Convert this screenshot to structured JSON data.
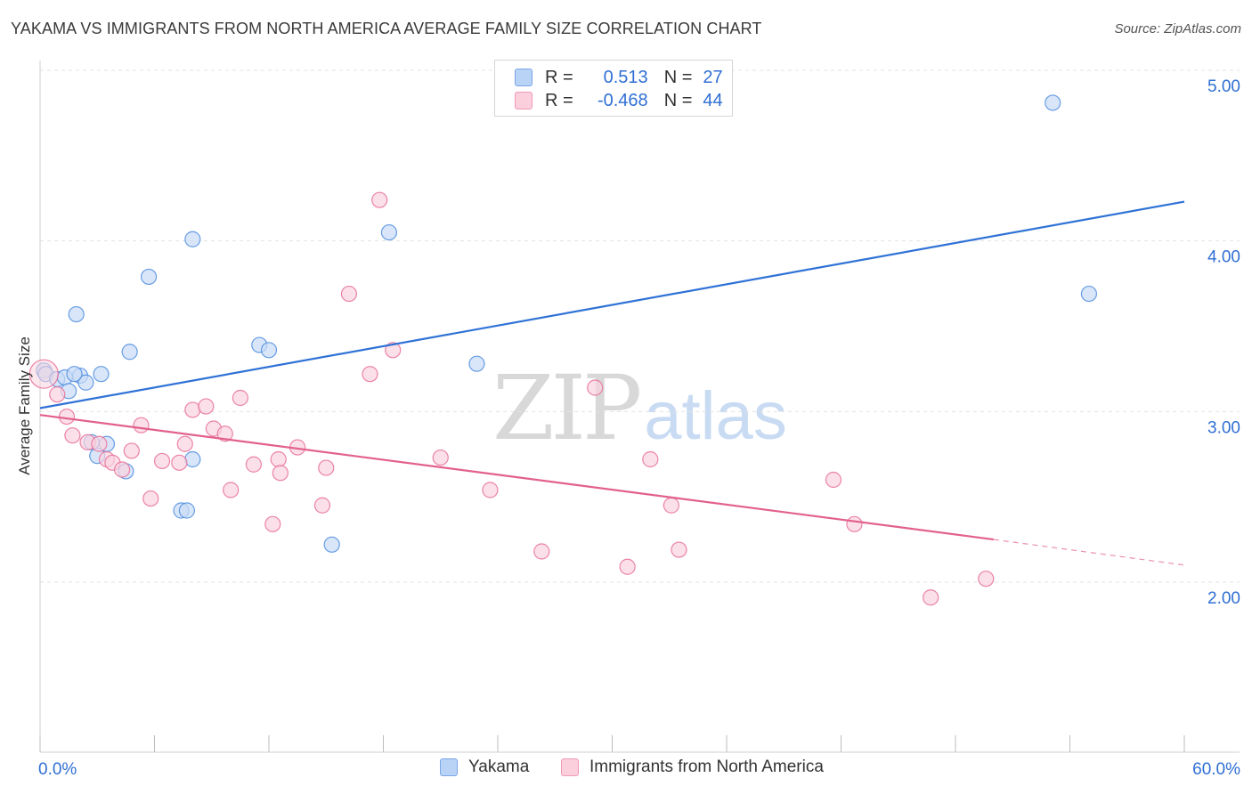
{
  "title": "YAKAMA VS IMMIGRANTS FROM NORTH AMERICA AVERAGE FAMILY SIZE CORRELATION CHART",
  "source": "Source: ZipAtlas.com",
  "watermark": {
    "zip": "ZIP",
    "atlas": "atlas"
  },
  "legend": {
    "rows": [
      {
        "r_label": "R =",
        "r_value": "0.513",
        "n_label": "N =",
        "n_value": "27"
      },
      {
        "r_label": "R =",
        "r_value": "-0.468",
        "n_label": "N =",
        "n_value": "44"
      }
    ]
  },
  "colors": {
    "blue": "#4f8ddf",
    "blue_fill": "#c9dcf7",
    "pink": "#e86e98",
    "pink_fill": "#fad3df",
    "value_text": "#2f6fd3"
  },
  "chart_data": {
    "type": "scatter",
    "ylabel": "Average Family Size",
    "x_tick_labels": [
      "0.0%",
      "60.0%"
    ],
    "y_tick_labels": [
      "5.00",
      "4.00",
      "3.00",
      "2.00"
    ],
    "y_ticks": [
      5.0,
      4.0,
      3.0,
      2.0
    ],
    "xlim": [
      0,
      60
    ],
    "ylim": [
      1.0,
      5.1
    ],
    "grid": true,
    "legend_position": "bottom-center",
    "series": [
      {
        "name": "Yakama",
        "color": "#4f8ddf",
        "points": [
          [
            0.2,
            3.24
          ],
          [
            0.3,
            3.22
          ],
          [
            0.9,
            3.19
          ],
          [
            1.3,
            3.2
          ],
          [
            1.5,
            3.12
          ],
          [
            1.9,
            3.57
          ],
          [
            2.1,
            3.21
          ],
          [
            2.4,
            3.17
          ],
          [
            2.7,
            2.82
          ],
          [
            3.0,
            2.74
          ],
          [
            3.2,
            3.22
          ],
          [
            3.5,
            2.81
          ],
          [
            4.5,
            2.65
          ],
          [
            4.7,
            3.35
          ],
          [
            5.7,
            3.79
          ],
          [
            7.4,
            2.42
          ],
          [
            7.7,
            2.42
          ],
          [
            8.0,
            2.72
          ],
          [
            8.0,
            4.01
          ],
          [
            11.5,
            3.39
          ],
          [
            12.0,
            3.36
          ],
          [
            15.3,
            2.22
          ],
          [
            18.3,
            4.05
          ],
          [
            22.9,
            3.28
          ],
          [
            53.1,
            4.81
          ],
          [
            55.0,
            3.69
          ],
          [
            1.8,
            3.22
          ]
        ],
        "trend": {
          "x": [
            0,
            60
          ],
          "y": [
            3.02,
            4.23
          ]
        }
      },
      {
        "name": "Immigrants from North America",
        "color": "#e86e98",
        "points": [
          [
            0.2,
            3.22
          ],
          [
            0.9,
            3.1
          ],
          [
            1.4,
            2.97
          ],
          [
            1.7,
            2.86
          ],
          [
            2.5,
            2.82
          ],
          [
            3.1,
            2.81
          ],
          [
            3.5,
            2.72
          ],
          [
            3.8,
            2.7
          ],
          [
            4.3,
            2.66
          ],
          [
            4.8,
            2.77
          ],
          [
            5.3,
            2.92
          ],
          [
            5.8,
            2.49
          ],
          [
            6.4,
            2.71
          ],
          [
            7.3,
            2.7
          ],
          [
            7.6,
            2.81
          ],
          [
            8.0,
            3.01
          ],
          [
            8.7,
            3.03
          ],
          [
            9.1,
            2.9
          ],
          [
            9.7,
            2.87
          ],
          [
            10.0,
            2.54
          ],
          [
            10.5,
            3.08
          ],
          [
            11.2,
            2.69
          ],
          [
            12.2,
            2.34
          ],
          [
            12.5,
            2.72
          ],
          [
            12.6,
            2.64
          ],
          [
            13.5,
            2.79
          ],
          [
            14.8,
            2.45
          ],
          [
            15.0,
            2.67
          ],
          [
            16.2,
            3.69
          ],
          [
            17.3,
            3.22
          ],
          [
            17.8,
            4.24
          ],
          [
            18.5,
            3.36
          ],
          [
            21.0,
            2.73
          ],
          [
            23.6,
            2.54
          ],
          [
            26.3,
            2.18
          ],
          [
            29.1,
            3.14
          ],
          [
            30.8,
            2.09
          ],
          [
            32.0,
            2.72
          ],
          [
            33.1,
            2.45
          ],
          [
            33.5,
            2.19
          ],
          [
            41.6,
            2.6
          ],
          [
            42.7,
            2.34
          ],
          [
            46.7,
            1.91
          ],
          [
            49.6,
            2.02
          ]
        ],
        "trend": {
          "x": [
            0,
            50
          ],
          "y": [
            2.98,
            2.25
          ]
        },
        "trend_extension": {
          "x": [
            50,
            60
          ],
          "y": [
            2.25,
            2.1
          ]
        }
      }
    ]
  }
}
